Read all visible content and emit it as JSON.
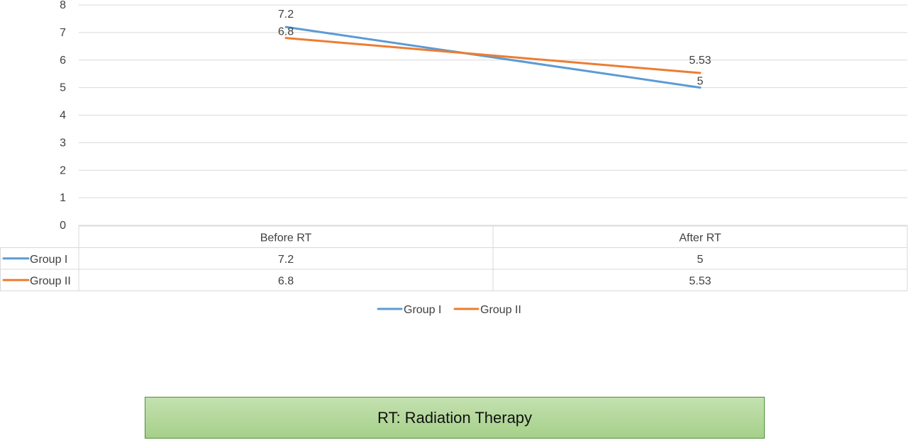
{
  "chart_data": {
    "type": "line",
    "categories": [
      "Before RT",
      "After RT"
    ],
    "series": [
      {
        "name": "Group I",
        "values": [
          7.2,
          5
        ],
        "labels": [
          "7.2",
          "5"
        ],
        "color": "#5b9bd5"
      },
      {
        "name": "Group II",
        "values": [
          6.8,
          5.53
        ],
        "labels": [
          "6.8",
          "5.53"
        ],
        "color": "#ed7d31"
      }
    ],
    "ylim": [
      0,
      8
    ],
    "yticks": [
      0,
      1,
      2,
      3,
      4,
      5,
      6,
      7,
      8
    ],
    "grid": true,
    "data_table": true,
    "legend_position": "bottom",
    "title": "",
    "xlabel": "",
    "ylabel": ""
  },
  "note": {
    "text": "RT: Radiation Therapy"
  }
}
